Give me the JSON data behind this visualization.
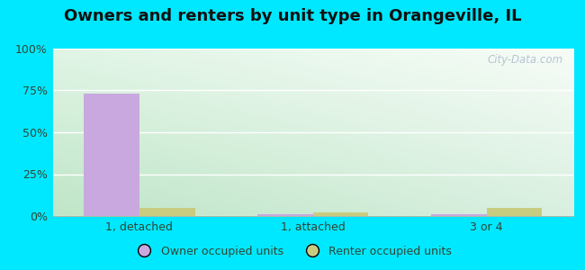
{
  "title": "Owners and renters by unit type in Orangeville, IL",
  "categories": [
    "1, detached",
    "1, attached",
    "3 or 4"
  ],
  "owner_values": [
    73,
    1,
    1
  ],
  "renter_values": [
    5,
    2,
    5
  ],
  "owner_color": "#c9a8df",
  "renter_color": "#c8cc80",
  "ylim": [
    0,
    100
  ],
  "yticks": [
    0,
    25,
    50,
    75,
    100
  ],
  "ytick_labels": [
    "0%",
    "25%",
    "50%",
    "75%",
    "100%"
  ],
  "bg_outer": "#00e8ff",
  "legend_owner": "Owner occupied units",
  "legend_renter": "Renter occupied units",
  "bar_width": 0.32,
  "watermark": "City-Data.com",
  "grid_color": "#e0e8e0",
  "bg_colors": [
    "#c8e8c8",
    "#dff0e8",
    "#eef8f4",
    "#f8fcfa"
  ],
  "title_fontsize": 13
}
